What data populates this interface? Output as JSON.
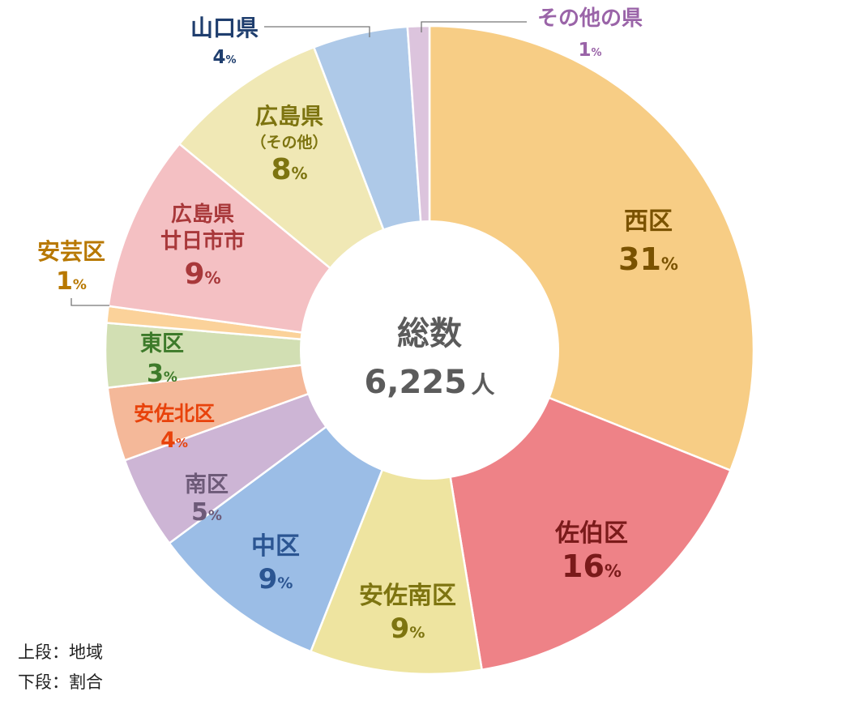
{
  "chart_data": {
    "type": "pie",
    "variant": "donut",
    "center_label": "総数",
    "center_value": "6,225",
    "center_unit": "人",
    "percent_sign": "%",
    "slices": [
      {
        "id": "nishi-ku",
        "label": "西区",
        "value": 31,
        "color": "#f7cd85",
        "text_color": "#7a5200",
        "display": "31"
      },
      {
        "id": "saeki-ku",
        "label": "佐伯区",
        "value": 16,
        "color": "#ee8287",
        "text_color": "#7a1a1a",
        "display": "16"
      },
      {
        "id": "asaminami-ku",
        "label": "安佐南区",
        "value": 9,
        "color": "#eee4a0",
        "text_color": "#7d7410",
        "display": "9"
      },
      {
        "id": "naka-ku",
        "label": "中区",
        "value": 9,
        "color": "#9bbde6",
        "text_color": "#2b5592",
        "display": "9"
      },
      {
        "id": "minami-ku",
        "label": "南区",
        "value": 5,
        "color": "#cdb5d5",
        "text_color": "#6d5a78",
        "display": "5"
      },
      {
        "id": "asakita-ku",
        "label": "安佐北区",
        "value": 4,
        "color": "#f4b899",
        "text_color": "#e8420b",
        "display": "4"
      },
      {
        "id": "higashi-ku",
        "label": "東区",
        "value": 3,
        "color": "#d2dfb3",
        "text_color": "#3d7a2a",
        "display": "3"
      },
      {
        "id": "aki-ku",
        "label": "安芸区",
        "value": 1,
        "color": "#fbd29a",
        "text_color": "#b87800",
        "display": "1"
      },
      {
        "id": "hatsukaichi",
        "label": "広島県",
        "sublabel": "廿日市市",
        "value": 9,
        "color": "#f4c0c3",
        "text_color": "#a8383a",
        "display": "9"
      },
      {
        "id": "hiroshima-other",
        "label": "広島県",
        "sublabel": "（その他）",
        "value": 8,
        "color": "#f0e8b5",
        "text_color": "#7d7410",
        "display": "8"
      },
      {
        "id": "yamaguchi",
        "label": "山口県",
        "value": 4,
        "color": "#aec9e8",
        "text_color": "#1f3e6e",
        "display": "4"
      },
      {
        "id": "other-pref",
        "label": "その他の県",
        "value": 1,
        "color": "#dcc4dd",
        "text_color": "#9a64a8",
        "display": "1"
      }
    ]
  },
  "notes": {
    "line1": "上段：地域",
    "line2": "下段：割合"
  }
}
